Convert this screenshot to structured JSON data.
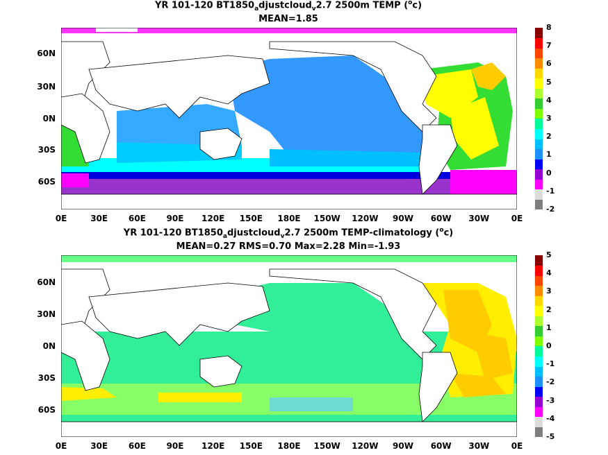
{
  "panels": [
    {
      "title_line1_a": "YR 101-120 BT1850",
      "title_line1_sub1": "a",
      "title_line1_b": "djustcloud",
      "title_line1_sub2": "v",
      "title_line1_c": "2.7 2500m TEMP (",
      "title_line1_sup": "o",
      "title_line1_d": "c)",
      "title_line2": "MEAN=1.85",
      "colorbar_labels": [
        "8",
        "7",
        "6",
        "5",
        "4",
        "3",
        "2",
        "1",
        "0",
        "-1",
        "-2"
      ]
    },
    {
      "title_line1_a": "YR 101-120 BT1850",
      "title_line1_sub1": "a",
      "title_line1_b": "djustcloud",
      "title_line1_sub2": "v",
      "title_line1_c": "2.7 2500m TEMP-climatology (",
      "title_line1_sup": "o",
      "title_line1_d": "c)",
      "title_line2": "MEAN=0.27   RMS=0.70   Max=2.28   Min=-1.93",
      "colorbar_labels": [
        "5",
        "4",
        "3",
        "2",
        "1",
        "0",
        "-1",
        "-2",
        "-3",
        "-4",
        "-5"
      ]
    }
  ],
  "lat_labels": [
    "60N",
    "30N",
    "0N",
    "30S",
    "60S"
  ],
  "lon_labels": [
    "0E",
    "30E",
    "60E",
    "90E",
    "120E",
    "150E",
    "180E",
    "150W",
    "120W",
    "90W",
    "60W",
    "30W",
    "0E"
  ],
  "colorbar_colors": [
    "#7f7f7f",
    "#dcdcdc",
    "#ff00ff",
    "#9400d3",
    "#0000ff",
    "#1e90ff",
    "#00bfff",
    "#00ffff",
    "#00fa9a",
    "#7fff00",
    "#32cd32",
    "#adff2f",
    "#ffff00",
    "#ffd700",
    "#ff8c00",
    "#ff4500",
    "#ff0000",
    "#8b0000"
  ]
}
